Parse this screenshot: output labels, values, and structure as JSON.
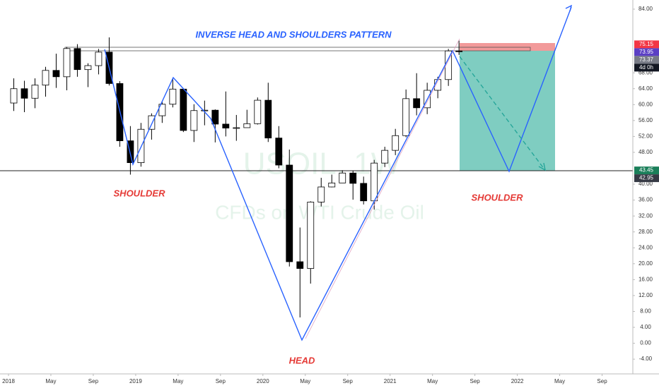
{
  "chart_data": {
    "type": "candlestick",
    "title": "INVERSE HEAD AND SHOULDERS PATTERN",
    "watermark": {
      "symbol": "USOIL, 1W",
      "description": "CFDs on WTI Crude Oil"
    },
    "annotations": [
      "SHOULDER",
      "HEAD",
      "SHOULDER"
    ],
    "x": [
      "2018-01",
      "2018-02",
      "2018-03",
      "2018-04",
      "2018-05",
      "2018-06",
      "2018-07",
      "2018-08",
      "2018-09",
      "2018-10",
      "2018-11",
      "2018-12",
      "2019-01",
      "2019-02",
      "2019-03",
      "2019-04",
      "2019-05",
      "2019-06",
      "2019-07",
      "2019-08",
      "2019-09",
      "2019-10",
      "2019-11",
      "2019-12",
      "2020-01",
      "2020-02",
      "2020-03",
      "2020-04",
      "2020-05",
      "2020-06",
      "2020-07",
      "2020-08",
      "2020-09",
      "2020-10",
      "2020-11",
      "2020-12",
      "2021-01",
      "2021-02",
      "2021-03",
      "2021-04",
      "2021-05",
      "2021-06",
      "2021-07"
    ],
    "open": [
      60.4,
      64.0,
      61.6,
      64.9,
      68.6,
      67.0,
      74.1,
      68.8,
      69.8,
      73.2,
      65.3,
      50.9,
      45.4,
      53.8,
      57.2,
      60.1,
      63.9,
      53.5,
      58.5,
      58.6,
      55.1,
      54.1,
      54.2,
      55.2,
      61.1,
      51.6,
      44.8,
      20.5,
      18.8,
      35.5,
      39.3,
      40.3,
      42.8,
      40.2,
      35.8,
      45.3,
      48.5,
      52.2,
      61.5,
      59.2,
      63.6,
      66.3,
      73.5
    ],
    "high": [
      66.6,
      66.0,
      66.6,
      69.5,
      72.8,
      74.5,
      75.2,
      70.4,
      74.0,
      76.9,
      65.9,
      54.6,
      55.4,
      57.8,
      60.7,
      66.6,
      63.9,
      60.1,
      61.0,
      58.8,
      63.3,
      57.4,
      58.7,
      61.8,
      65.5,
      54.6,
      48.7,
      29.1,
      35.7,
      41.6,
      42.4,
      43.5,
      43.4,
      41.9,
      46.1,
      49.4,
      53.9,
      63.8,
      67.9,
      65.5,
      67.0,
      74.0,
      76.1
    ],
    "low": [
      58.4,
      58.1,
      59.1,
      62.0,
      64.2,
      63.6,
      67.0,
      64.4,
      67.6,
      64.8,
      49.4,
      42.4,
      44.4,
      51.2,
      55.4,
      59.3,
      53.1,
      50.6,
      54.8,
      50.5,
      52.0,
      50.9,
      54.2,
      55.0,
      50.6,
      44.0,
      19.3,
      6.5,
      15.0,
      34.4,
      39.2,
      40.3,
      36.1,
      34.9,
      33.6,
      44.3,
      47.3,
      51.8,
      57.3,
      57.6,
      61.6,
      64.7,
      72.5
    ],
    "close": [
      64.0,
      61.6,
      64.9,
      68.6,
      67.0,
      74.1,
      68.8,
      69.8,
      73.2,
      65.3,
      50.9,
      45.4,
      53.8,
      57.2,
      60.1,
      63.9,
      53.5,
      58.5,
      58.6,
      55.1,
      54.1,
      54.2,
      55.2,
      61.1,
      51.6,
      44.8,
      20.5,
      18.8,
      35.5,
      39.3,
      40.3,
      42.8,
      40.2,
      35.8,
      45.3,
      48.5,
      52.2,
      61.5,
      59.2,
      63.6,
      66.3,
      73.5,
      73.3
    ],
    "xlim": [
      -0.8,
      58.9
    ],
    "xticks": [
      {
        "value": 0,
        "label": "2018"
      },
      {
        "value": 4,
        "label": "May"
      },
      {
        "value": 8,
        "label": "Sep"
      },
      {
        "value": 12,
        "label": "2019"
      },
      {
        "value": 16,
        "label": "May"
      },
      {
        "value": 20,
        "label": "Sep"
      },
      {
        "value": 24,
        "label": "2020"
      },
      {
        "value": 28,
        "label": "May"
      },
      {
        "value": 32,
        "label": "Sep"
      },
      {
        "value": 36,
        "label": "2021"
      },
      {
        "value": 40,
        "label": "May"
      },
      {
        "value": 44,
        "label": "Sep"
      },
      {
        "value": 48,
        "label": "2022"
      },
      {
        "value": 52,
        "label": "May"
      },
      {
        "value": 56,
        "label": "Sep"
      }
    ],
    "ylim": [
      -7.7,
      86.3
    ],
    "yticks": [
      {
        "value": 84,
        "label": "84.00"
      },
      {
        "value": 68,
        "label": "68.00"
      },
      {
        "value": 64,
        "label": "64.00"
      },
      {
        "value": 60,
        "label": "60.00"
      },
      {
        "value": 56,
        "label": "56.00"
      },
      {
        "value": 52,
        "label": "52.00"
      },
      {
        "value": 48,
        "label": "48.00"
      },
      {
        "value": 40,
        "label": "40.00"
      },
      {
        "value": 36,
        "label": "36.00"
      },
      {
        "value": 32,
        "label": "32.00"
      },
      {
        "value": 28,
        "label": "28.00"
      },
      {
        "value": 24,
        "label": "24.00"
      },
      {
        "value": 20,
        "label": "20.00"
      },
      {
        "value": 16,
        "label": "16.00"
      },
      {
        "value": 12,
        "label": "12.00"
      },
      {
        "value": 8,
        "label": "8.00"
      },
      {
        "value": 4,
        "label": "4.00"
      },
      {
        "value": 0,
        "label": "0.00"
      },
      {
        "value": -4,
        "label": "-4.00"
      }
    ],
    "price_labels": [
      {
        "value": 75.15,
        "label": "75.15",
        "color": "#f23645"
      },
      {
        "value": 73.95,
        "label": "73.95",
        "color": "#5b3fc4"
      },
      {
        "value": 73.37,
        "label": "73.37",
        "color": "#787b86"
      },
      {
        "value": 43.45,
        "label": "43.45",
        "color": "#1b7f5a"
      },
      {
        "value": 42.95,
        "label": "42.95",
        "color": "#363a45"
      }
    ],
    "countdown": "4d 0h",
    "up_color": "#ffffff",
    "down_color": "#000000"
  }
}
